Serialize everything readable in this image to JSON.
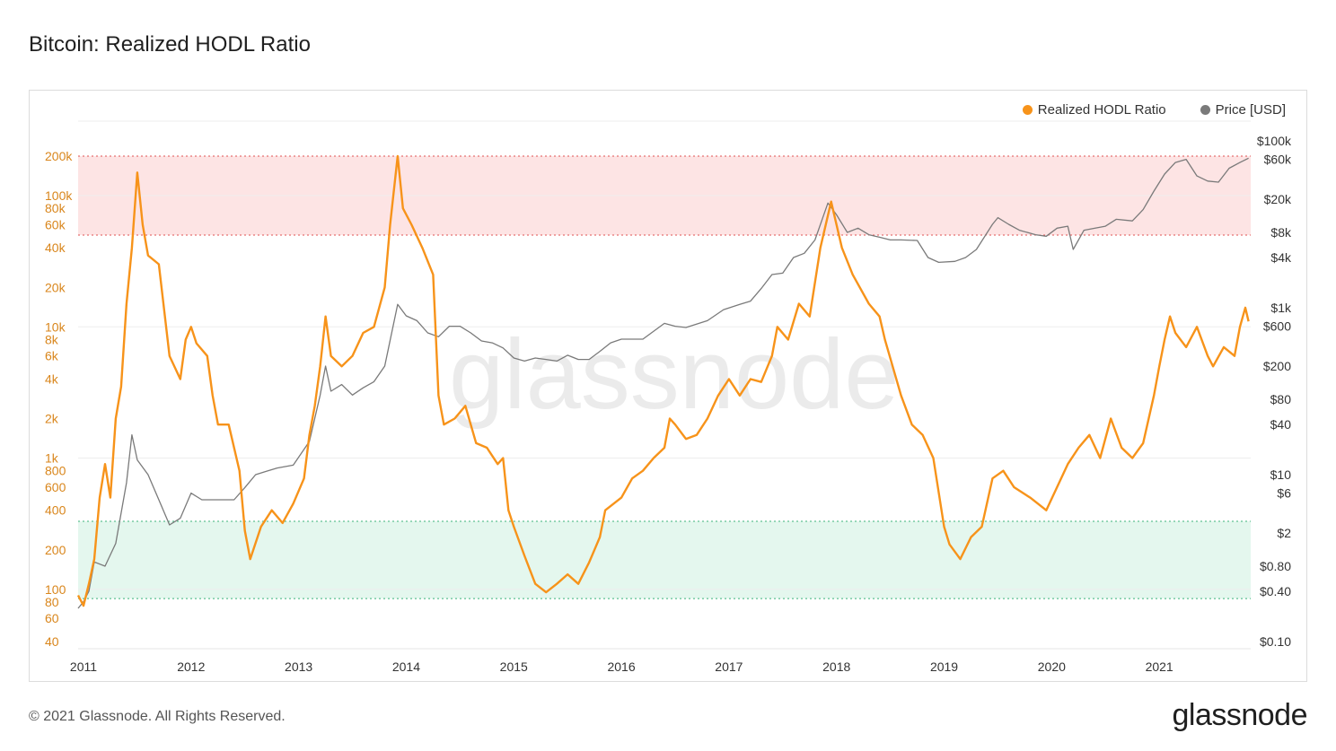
{
  "title": "Bitcoin: Realized HODL Ratio",
  "footer": {
    "copyright": "© 2021 Glassnode. All Rights Reserved.",
    "logo": "glassnode"
  },
  "watermark": "glassnode",
  "colors": {
    "rhodl": "#f7931a",
    "price": "#7a7a7a",
    "top_band": "#fde4e4",
    "bottom_band": "#e4f7ee"
  },
  "chart_data": {
    "type": "line",
    "title": "Bitcoin: Realized HODL Ratio",
    "legend": {
      "placement": "top-right",
      "entries": [
        "Realized HODL Ratio",
        "Price [USD]"
      ]
    },
    "x_ticks": [
      "2011",
      "2012",
      "2013",
      "2014",
      "2015",
      "2016",
      "2017",
      "2018",
      "2019",
      "2020",
      "2021"
    ],
    "y_left": {
      "scale": "log",
      "ylim": [
        40,
        200000
      ],
      "ticks": [
        {
          "v": 200000,
          "label": "200k"
        },
        {
          "v": 100000,
          "label": "100k"
        },
        {
          "v": 80000,
          "label": "80k"
        },
        {
          "v": 60000,
          "label": "60k"
        },
        {
          "v": 40000,
          "label": "40k"
        },
        {
          "v": 20000,
          "label": "20k"
        },
        {
          "v": 10000,
          "label": "10k"
        },
        {
          "v": 8000,
          "label": "8k"
        },
        {
          "v": 6000,
          "label": "6k"
        },
        {
          "v": 4000,
          "label": "4k"
        },
        {
          "v": 2000,
          "label": "2k"
        },
        {
          "v": 1000,
          "label": "1k"
        },
        {
          "v": 800,
          "label": "800"
        },
        {
          "v": 600,
          "label": "600"
        },
        {
          "v": 400,
          "label": "400"
        },
        {
          "v": 200,
          "label": "200"
        },
        {
          "v": 100,
          "label": "100"
        },
        {
          "v": 80,
          "label": "80"
        },
        {
          "v": 60,
          "label": "60"
        },
        {
          "v": 40,
          "label": "40"
        }
      ]
    },
    "y_right": {
      "scale": "log",
      "ylim": [
        0.1,
        100000
      ],
      "ticks": [
        {
          "v": 100000,
          "label": "$100k"
        },
        {
          "v": 60000,
          "label": "$60k"
        },
        {
          "v": 20000,
          "label": "$20k"
        },
        {
          "v": 8000,
          "label": "$8k"
        },
        {
          "v": 4000,
          "label": "$4k"
        },
        {
          "v": 1000,
          "label": "$1k"
        },
        {
          "v": 600,
          "label": "$600"
        },
        {
          "v": 200,
          "label": "$200"
        },
        {
          "v": 80,
          "label": "$80"
        },
        {
          "v": 40,
          "label": "$40"
        },
        {
          "v": 10,
          "label": "$10"
        },
        {
          "v": 6,
          "label": "$6"
        },
        {
          "v": 2,
          "label": "$2"
        },
        {
          "v": 0.8,
          "label": "$0.80"
        },
        {
          "v": 0.4,
          "label": "$0.40"
        },
        {
          "v": 0.1,
          "label": "$0.10"
        }
      ]
    },
    "bands": [
      {
        "name": "top",
        "from": 50000,
        "to": 200000
      },
      {
        "name": "bottom",
        "from": 85,
        "to": 330
      }
    ],
    "series": [
      {
        "name": "Realized HODL Ratio",
        "axis": "left",
        "points": [
          [
            2010.95,
            90
          ],
          [
            2011.0,
            75
          ],
          [
            2011.05,
            110
          ],
          [
            2011.1,
            170
          ],
          [
            2011.15,
            500
          ],
          [
            2011.2,
            900
          ],
          [
            2011.25,
            500
          ],
          [
            2011.3,
            2000
          ],
          [
            2011.35,
            3500
          ],
          [
            2011.4,
            15000
          ],
          [
            2011.45,
            40000
          ],
          [
            2011.5,
            150000
          ],
          [
            2011.55,
            60000
          ],
          [
            2011.6,
            35000
          ],
          [
            2011.7,
            30000
          ],
          [
            2011.8,
            6000
          ],
          [
            2011.9,
            4000
          ],
          [
            2011.95,
            8000
          ],
          [
            2012.0,
            10000
          ],
          [
            2012.05,
            7500
          ],
          [
            2012.15,
            6000
          ],
          [
            2012.2,
            3000
          ],
          [
            2012.25,
            1800
          ],
          [
            2012.35,
            1800
          ],
          [
            2012.45,
            800
          ],
          [
            2012.5,
            280
          ],
          [
            2012.55,
            170
          ],
          [
            2012.65,
            300
          ],
          [
            2012.75,
            400
          ],
          [
            2012.85,
            320
          ],
          [
            2012.95,
            450
          ],
          [
            2013.05,
            700
          ],
          [
            2013.1,
            1500
          ],
          [
            2013.15,
            2500
          ],
          [
            2013.2,
            5000
          ],
          [
            2013.25,
            12000
          ],
          [
            2013.3,
            6000
          ],
          [
            2013.4,
            5000
          ],
          [
            2013.5,
            6000
          ],
          [
            2013.6,
            9000
          ],
          [
            2013.7,
            10000
          ],
          [
            2013.8,
            20000
          ],
          [
            2013.85,
            60000
          ],
          [
            2013.92,
            200000
          ],
          [
            2013.97,
            80000
          ],
          [
            2014.05,
            60000
          ],
          [
            2014.15,
            40000
          ],
          [
            2014.25,
            25000
          ],
          [
            2014.3,
            3000
          ],
          [
            2014.35,
            1800
          ],
          [
            2014.45,
            2000
          ],
          [
            2014.55,
            2500
          ],
          [
            2014.65,
            1300
          ],
          [
            2014.75,
            1200
          ],
          [
            2014.85,
            900
          ],
          [
            2014.9,
            1000
          ],
          [
            2014.95,
            400
          ],
          [
            2015.0,
            300
          ],
          [
            2015.1,
            180
          ],
          [
            2015.2,
            110
          ],
          [
            2015.3,
            95
          ],
          [
            2015.4,
            110
          ],
          [
            2015.5,
            130
          ],
          [
            2015.6,
            110
          ],
          [
            2015.7,
            160
          ],
          [
            2015.75,
            200
          ],
          [
            2015.8,
            250
          ],
          [
            2015.85,
            400
          ],
          [
            2016.0,
            500
          ],
          [
            2016.1,
            700
          ],
          [
            2016.2,
            800
          ],
          [
            2016.3,
            1000
          ],
          [
            2016.4,
            1200
          ],
          [
            2016.45,
            2000
          ],
          [
            2016.5,
            1800
          ],
          [
            2016.6,
            1400
          ],
          [
            2016.7,
            1500
          ],
          [
            2016.8,
            2000
          ],
          [
            2016.9,
            3000
          ],
          [
            2017.0,
            4000
          ],
          [
            2017.1,
            3000
          ],
          [
            2017.2,
            4000
          ],
          [
            2017.3,
            3800
          ],
          [
            2017.4,
            6000
          ],
          [
            2017.45,
            10000
          ],
          [
            2017.55,
            8000
          ],
          [
            2017.65,
            15000
          ],
          [
            2017.75,
            12000
          ],
          [
            2017.85,
            40000
          ],
          [
            2017.95,
            90000
          ],
          [
            2018.0,
            60000
          ],
          [
            2018.05,
            40000
          ],
          [
            2018.15,
            25000
          ],
          [
            2018.3,
            15000
          ],
          [
            2018.4,
            12000
          ],
          [
            2018.45,
            8000
          ],
          [
            2018.6,
            3000
          ],
          [
            2018.7,
            1800
          ],
          [
            2018.8,
            1500
          ],
          [
            2018.9,
            1000
          ],
          [
            2019.0,
            300
          ],
          [
            2019.05,
            220
          ],
          [
            2019.15,
            170
          ],
          [
            2019.25,
            250
          ],
          [
            2019.35,
            300
          ],
          [
            2019.45,
            700
          ],
          [
            2019.55,
            800
          ],
          [
            2019.65,
            600
          ],
          [
            2019.8,
            500
          ],
          [
            2019.95,
            400
          ],
          [
            2020.05,
            600
          ],
          [
            2020.15,
            900
          ],
          [
            2020.25,
            1200
          ],
          [
            2020.35,
            1500
          ],
          [
            2020.45,
            1000
          ],
          [
            2020.55,
            2000
          ],
          [
            2020.65,
            1200
          ],
          [
            2020.75,
            1000
          ],
          [
            2020.85,
            1300
          ],
          [
            2020.95,
            3000
          ],
          [
            2021.0,
            5000
          ],
          [
            2021.05,
            8000
          ],
          [
            2021.1,
            12000
          ],
          [
            2021.15,
            9000
          ],
          [
            2021.25,
            7000
          ],
          [
            2021.35,
            10000
          ],
          [
            2021.45,
            6000
          ],
          [
            2021.5,
            5000
          ],
          [
            2021.6,
            7000
          ],
          [
            2021.7,
            6000
          ],
          [
            2021.75,
            10000
          ],
          [
            2021.8,
            14000
          ],
          [
            2021.83,
            11000
          ]
        ]
      },
      {
        "name": "Price [USD]",
        "axis": "right",
        "points": [
          [
            2010.95,
            0.25
          ],
          [
            2011.0,
            0.3
          ],
          [
            2011.05,
            0.4
          ],
          [
            2011.1,
            0.9
          ],
          [
            2011.2,
            0.8
          ],
          [
            2011.3,
            1.5
          ],
          [
            2011.4,
            8
          ],
          [
            2011.45,
            30
          ],
          [
            2011.5,
            15
          ],
          [
            2011.6,
            10
          ],
          [
            2011.7,
            5
          ],
          [
            2011.8,
            2.5
          ],
          [
            2011.9,
            3
          ],
          [
            2012.0,
            6
          ],
          [
            2012.1,
            5
          ],
          [
            2012.2,
            5
          ],
          [
            2012.4,
            5
          ],
          [
            2012.5,
            7
          ],
          [
            2012.6,
            10
          ],
          [
            2012.7,
            11
          ],
          [
            2012.8,
            12
          ],
          [
            2012.95,
            13
          ],
          [
            2013.1,
            25
          ],
          [
            2013.2,
            90
          ],
          [
            2013.25,
            200
          ],
          [
            2013.3,
            100
          ],
          [
            2013.4,
            120
          ],
          [
            2013.5,
            90
          ],
          [
            2013.6,
            110
          ],
          [
            2013.7,
            130
          ],
          [
            2013.8,
            200
          ],
          [
            2013.92,
            1100
          ],
          [
            2014.0,
            800
          ],
          [
            2014.1,
            700
          ],
          [
            2014.2,
            500
          ],
          [
            2014.3,
            450
          ],
          [
            2014.4,
            600
          ],
          [
            2014.5,
            600
          ],
          [
            2014.6,
            500
          ],
          [
            2014.7,
            400
          ],
          [
            2014.8,
            380
          ],
          [
            2014.9,
            330
          ],
          [
            2015.0,
            250
          ],
          [
            2015.1,
            230
          ],
          [
            2015.2,
            250
          ],
          [
            2015.3,
            240
          ],
          [
            2015.4,
            230
          ],
          [
            2015.5,
            270
          ],
          [
            2015.6,
            240
          ],
          [
            2015.7,
            240
          ],
          [
            2015.8,
            300
          ],
          [
            2015.9,
            380
          ],
          [
            2016.0,
            420
          ],
          [
            2016.2,
            420
          ],
          [
            2016.4,
            650
          ],
          [
            2016.5,
            600
          ],
          [
            2016.6,
            580
          ],
          [
            2016.8,
            700
          ],
          [
            2016.95,
            950
          ],
          [
            2017.1,
            1100
          ],
          [
            2017.2,
            1200
          ],
          [
            2017.3,
            1700
          ],
          [
            2017.4,
            2500
          ],
          [
            2017.5,
            2600
          ],
          [
            2017.6,
            4000
          ],
          [
            2017.7,
            4500
          ],
          [
            2017.8,
            6500
          ],
          [
            2017.92,
            18000
          ],
          [
            2018.0,
            13000
          ],
          [
            2018.1,
            8000
          ],
          [
            2018.2,
            9000
          ],
          [
            2018.3,
            7500
          ],
          [
            2018.4,
            7000
          ],
          [
            2018.5,
            6500
          ],
          [
            2018.6,
            6500
          ],
          [
            2018.75,
            6400
          ],
          [
            2018.85,
            4000
          ],
          [
            2018.95,
            3500
          ],
          [
            2019.1,
            3600
          ],
          [
            2019.2,
            4000
          ],
          [
            2019.3,
            5000
          ],
          [
            2019.45,
            10000
          ],
          [
            2019.5,
            12000
          ],
          [
            2019.6,
            10000
          ],
          [
            2019.7,
            8500
          ],
          [
            2019.85,
            7500
          ],
          [
            2019.95,
            7200
          ],
          [
            2020.05,
            9000
          ],
          [
            2020.15,
            9500
          ],
          [
            2020.2,
            5000
          ],
          [
            2020.3,
            8500
          ],
          [
            2020.5,
            9500
          ],
          [
            2020.6,
            11500
          ],
          [
            2020.75,
            11000
          ],
          [
            2020.85,
            15000
          ],
          [
            2020.95,
            25000
          ],
          [
            2021.05,
            40000
          ],
          [
            2021.15,
            55000
          ],
          [
            2021.25,
            60000
          ],
          [
            2021.35,
            38000
          ],
          [
            2021.45,
            33000
          ],
          [
            2021.55,
            32000
          ],
          [
            2021.65,
            47000
          ],
          [
            2021.75,
            55000
          ],
          [
            2021.83,
            62000
          ]
        ]
      }
    ]
  }
}
